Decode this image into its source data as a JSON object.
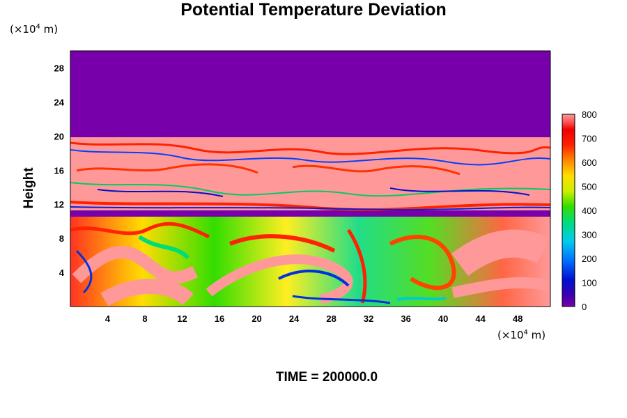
{
  "chart_data": {
    "type": "heatmap",
    "title": "Potential Temperature Deviation",
    "ylabel": "Height",
    "xlabel": "",
    "x_unit": "(×10",
    "y_unit": "(×10",
    "unit_exp": "4",
    "unit_tail": " m)",
    "footer": "TIME = 200000.0",
    "xlim": [
      0,
      51.5
    ],
    "ylim": [
      0,
      30
    ],
    "x_ticks": [
      "4",
      "8",
      "12",
      "16",
      "20",
      "24",
      "28",
      "32",
      "36",
      "40",
      "44",
      "48"
    ],
    "y_ticks": [
      "4",
      "8",
      "12",
      "16",
      "20",
      "24",
      "28"
    ],
    "colorbar": {
      "min": 0,
      "max": 800,
      "ticks": [
        "0",
        "100",
        "200",
        "300",
        "400",
        "500",
        "600",
        "700",
        "800"
      ]
    },
    "layers": [
      {
        "from": 20,
        "to": 30,
        "level": "0"
      },
      {
        "from": 11.5,
        "to": 20,
        "level": "800"
      },
      {
        "from": 0,
        "to": 11,
        "level": "mixed"
      }
    ]
  }
}
